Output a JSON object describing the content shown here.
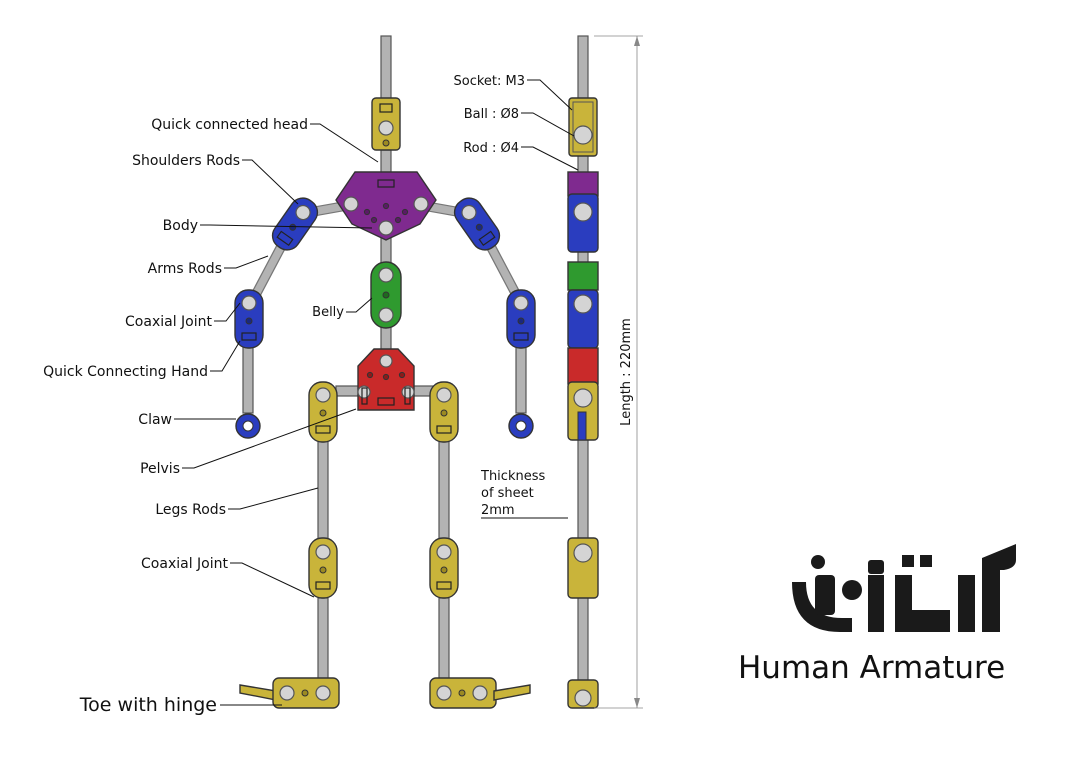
{
  "colors": {
    "gold": "#c9b43a",
    "purple": "#7f2a8f",
    "blue": "#2a3dbf",
    "green": "#2f9a2f",
    "red": "#c92a2a",
    "rod": "#b3b3b3"
  },
  "labels": {
    "quick_head": "Quick connected head",
    "shoulders_rods": "Shoulders Rods",
    "body": "Body",
    "arms_rods": "Arms Rods",
    "coaxial_joint_arm": "Coaxial Joint",
    "belly": "Belly",
    "quick_hand": "Quick Connecting Hand",
    "claw": "Claw",
    "pelvis": "Pelvis",
    "legs_rods": "Legs Rods",
    "coaxial_joint_leg": "Coaxial Joint",
    "toe": "Toe with hinge",
    "socket": "Socket: M3",
    "ball": "Ball : Ø8",
    "rod": "Rod : Ø4",
    "thickness_1": "Thickness",
    "thickness_2": "of sheet",
    "thickness_3": "2mm",
    "length": "Length : 220mm"
  },
  "brand": {
    "logo_text": "آرتاش",
    "title": "Human Armature"
  }
}
